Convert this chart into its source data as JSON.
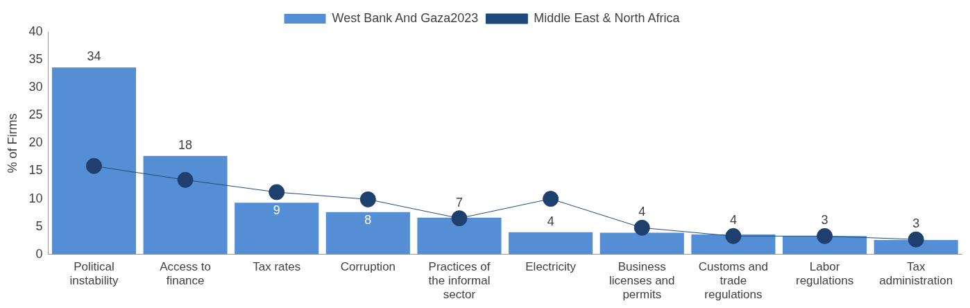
{
  "chart_data": {
    "type": "bar",
    "ylabel": "% of Firms",
    "categories": [
      "Political instability",
      "Access to finance",
      "Tax rates",
      "Corruption",
      "Practices of the informal sector",
      "Electricity",
      "Business licenses and permits",
      "Customs and trade regulations",
      "Labor regulations",
      "Tax administration"
    ],
    "series": [
      {
        "name": "West Bank And Gaza2023",
        "color": "#558ed5",
        "values": [
          33.6,
          17.7,
          9.3,
          7.6,
          6.6,
          4.0,
          3.9,
          3.6,
          3.3,
          2.6
        ],
        "value_labels": [
          "34",
          "18",
          "9",
          "8",
          "7",
          "4",
          "4",
          "4",
          "3",
          "3"
        ]
      },
      {
        "name": "Middle East & North Africa",
        "type": "line",
        "color": "#1f497d",
        "values": [
          15.9,
          13.4,
          11.2,
          9.9,
          6.5,
          10.0,
          4.8,
          3.3,
          3.3,
          2.7
        ]
      }
    ],
    "ylim": [
      0,
      40
    ],
    "yticks": [
      0,
      5,
      10,
      15,
      20,
      25,
      30,
      35,
      40
    ],
    "grid": false,
    "legend": "top",
    "marker": "circle",
    "line_style": "solid"
  }
}
